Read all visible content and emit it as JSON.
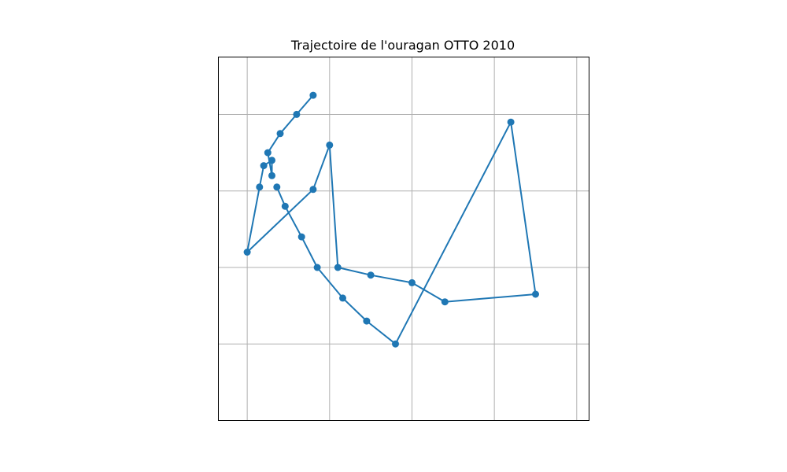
{
  "chart_data": {
    "type": "line",
    "title": "Trajectoire de l'ouragan OTTO 2010",
    "xlabel": "",
    "ylabel": "",
    "grid": true,
    "xlim": [
      -61.65,
      -57.15
    ],
    "ylim": [
      17.5,
      22.25
    ],
    "grid_x": [
      -61.3,
      -60.3,
      -59.3,
      -58.3,
      -57.3
    ],
    "grid_y": [
      18.5,
      19.5,
      20.5,
      21.5
    ],
    "color": "#1f77b4",
    "series": [
      {
        "x": [
          -60.5,
          -60.7,
          -60.9,
          -61.05,
          -61.0,
          -61.0,
          -61.1,
          -61.15,
          -61.3,
          -60.5,
          -60.3,
          -60.2,
          -59.8,
          -59.3,
          -58.9,
          -57.8,
          -58.1,
          -59.5,
          -59.85,
          -60.14,
          -60.45,
          -60.64,
          -60.84,
          -60.94
        ],
        "y": [
          21.75,
          21.5,
          21.25,
          21.0,
          20.7,
          20.9,
          20.83,
          20.55,
          19.7,
          20.52,
          21.1,
          19.5,
          19.4,
          19.3,
          19.05,
          19.15,
          21.4,
          18.5,
          18.8,
          19.1,
          19.5,
          19.9,
          20.3,
          20.55
        ]
      }
    ]
  }
}
